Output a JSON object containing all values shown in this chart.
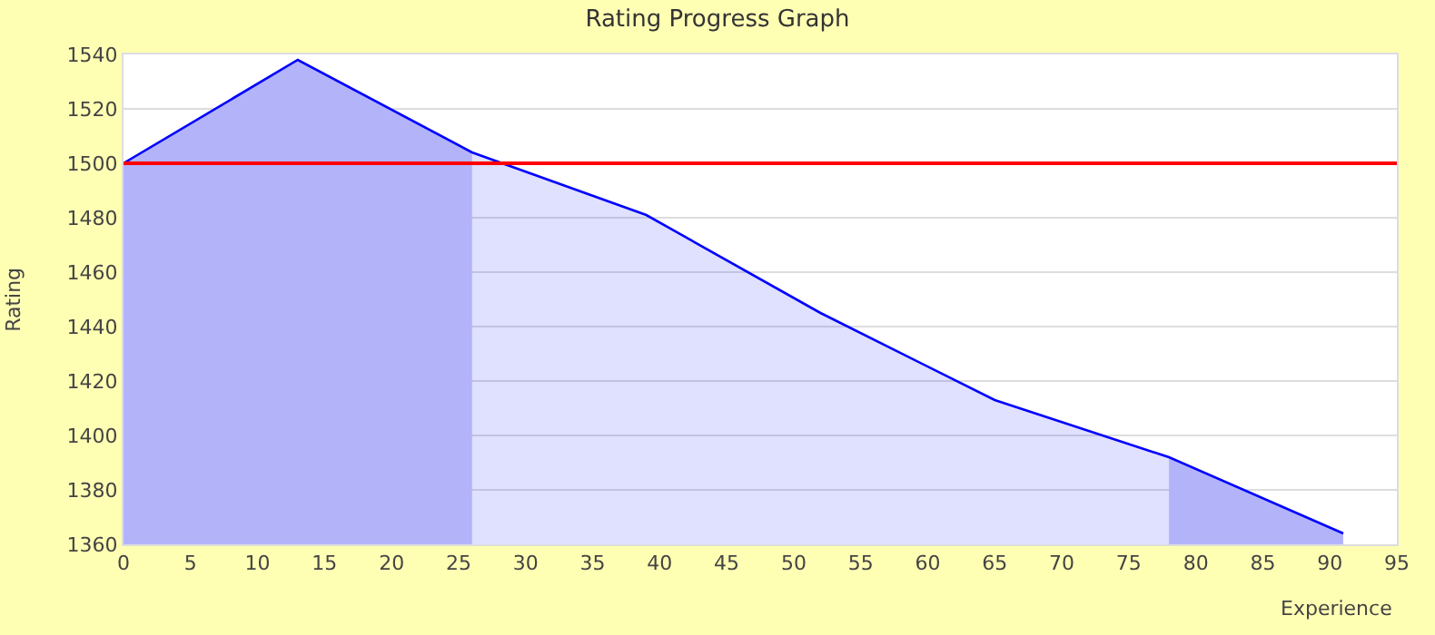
{
  "chart_data": {
    "type": "area",
    "title": "Rating Progress Graph",
    "xlabel": "Experience",
    "ylabel": "Rating",
    "x": [
      0,
      13,
      26,
      39,
      52,
      65,
      78,
      91
    ],
    "series": [
      {
        "color": "#0000ff",
        "values": [
          1500,
          1538,
          1504,
          1481,
          1445,
          1413,
          1392,
          1364
        ]
      },
      {
        "color": "#ccccfa",
        "values": [
          1500,
          1538,
          1504,
          null,
          null,
          null,
          1392,
          1364
        ]
      }
    ],
    "xlim": [
      0,
      95
    ],
    "xticks": [
      0,
      5,
      10,
      15,
      20,
      25,
      30,
      35,
      40,
      45,
      50,
      55,
      60,
      65,
      70,
      75,
      80,
      85,
      90,
      95
    ],
    "ylim": [
      1360,
      1540
    ],
    "yticks": [
      1360,
      1380,
      1400,
      1420,
      1440,
      1460,
      1480,
      1500,
      1520,
      1540
    ],
    "ref_lines": [
      {
        "axis": "y",
        "value": 1500,
        "color": "#ff0000"
      }
    ],
    "grid": "y",
    "marker": "none",
    "line_style": "solid"
  }
}
